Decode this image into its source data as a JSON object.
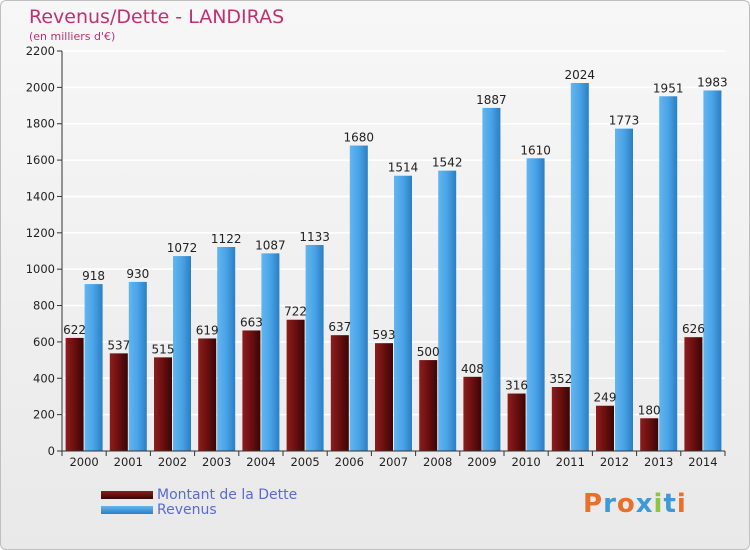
{
  "header": {
    "title": "Revenus/Dette - LANDIRAS",
    "subtitle": "(en milliers d'€)"
  },
  "brand": {
    "logo_text": "Proxiti"
  },
  "colors": {
    "dette": "#7a1616",
    "revenus": "#4aa3e6",
    "axis_text": "#222222",
    "grid": "#ffffff",
    "title": "#c03070",
    "legend_text": "#5a6ad0"
  },
  "chart_data": {
    "type": "bar",
    "categories": [
      "2000",
      "2001",
      "2002",
      "2003",
      "2004",
      "2005",
      "2006",
      "2007",
      "2008",
      "2009",
      "2010",
      "2011",
      "2012",
      "2013",
      "2014"
    ],
    "series": [
      {
        "name": "Montant de la Dette",
        "values": [
          622,
          537,
          515,
          619,
          663,
          722,
          637,
          593,
          500,
          408,
          316,
          352,
          249,
          180,
          626
        ]
      },
      {
        "name": "Revenus",
        "values": [
          918,
          930,
          1072,
          1122,
          1087,
          1133,
          1680,
          1514,
          1542,
          1887,
          1610,
          2024,
          1773,
          1951,
          1983
        ]
      }
    ],
    "yticks": [
      0,
      200,
      400,
      600,
      800,
      1000,
      1200,
      1400,
      1600,
      1800,
      2000,
      2200
    ],
    "ylim": [
      0,
      2200
    ],
    "grid": true,
    "legend_position": "bottom-left"
  }
}
